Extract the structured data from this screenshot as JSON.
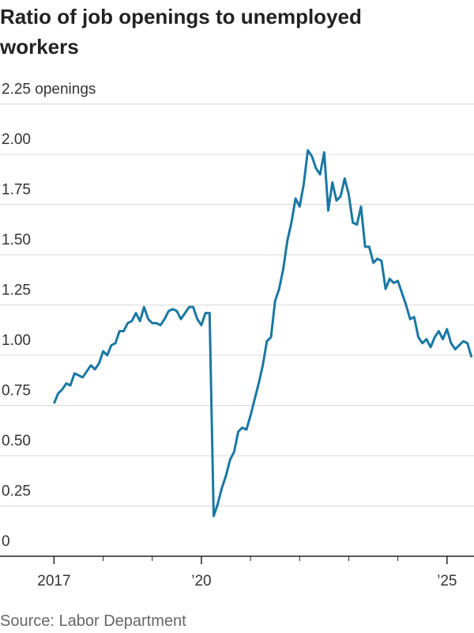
{
  "chart_data": {
    "type": "line",
    "title": "Ratio of job openings to unemployed workers",
    "source": "Source: Labor Department",
    "x": [
      2017,
      2017.083,
      2017.167,
      2017.25,
      2017.333,
      2017.417,
      2017.5,
      2017.583,
      2017.667,
      2017.75,
      2017.833,
      2017.917,
      2018,
      2018.083,
      2018.167,
      2018.25,
      2018.333,
      2018.417,
      2018.5,
      2018.583,
      2018.667,
      2018.75,
      2018.833,
      2018.917,
      2019,
      2019.083,
      2019.167,
      2019.25,
      2019.333,
      2019.417,
      2019.5,
      2019.583,
      2019.667,
      2019.75,
      2019.833,
      2019.917,
      2020,
      2020.083,
      2020.167,
      2020.25,
      2020.333,
      2020.417,
      2020.5,
      2020.583,
      2020.667,
      2020.75,
      2020.833,
      2020.917,
      2021,
      2021.083,
      2021.167,
      2021.25,
      2021.333,
      2021.417,
      2021.5,
      2021.583,
      2021.667,
      2021.75,
      2021.833,
      2021.917,
      2022,
      2022.083,
      2022.167,
      2022.25,
      2022.333,
      2022.417,
      2022.5,
      2022.583,
      2022.667,
      2022.75,
      2022.833,
      2022.917,
      2023,
      2023.083,
      2023.167,
      2023.25,
      2023.333,
      2023.417,
      2023.5,
      2023.583,
      2023.667,
      2023.75,
      2023.833,
      2023.917,
      2024,
      2024.083,
      2024.167,
      2024.25,
      2024.333,
      2024.417,
      2024.5,
      2024.583,
      2024.667,
      2024.75,
      2024.833,
      2024.917,
      2025,
      2025.083,
      2025.167,
      2025.25,
      2025.333,
      2025.417,
      2025.5
    ],
    "series": [
      {
        "name": "Ratio",
        "color": "#1a78a3",
        "values": [
          0.76,
          0.81,
          0.83,
          0.86,
          0.85,
          0.91,
          0.9,
          0.89,
          0.92,
          0.95,
          0.93,
          0.96,
          1.02,
          1.0,
          1.05,
          1.06,
          1.12,
          1.12,
          1.16,
          1.17,
          1.21,
          1.17,
          1.24,
          1.18,
          1.16,
          1.16,
          1.15,
          1.18,
          1.22,
          1.23,
          1.22,
          1.18,
          1.21,
          1.24,
          1.24,
          1.18,
          1.15,
          1.21,
          1.21,
          0.2,
          0.26,
          0.34,
          0.4,
          0.48,
          0.52,
          0.62,
          0.64,
          0.63,
          0.7,
          0.78,
          0.86,
          0.95,
          1.07,
          1.09,
          1.27,
          1.33,
          1.43,
          1.57,
          1.66,
          1.78,
          1.74,
          1.85,
          2.02,
          1.99,
          1.93,
          1.9,
          2.01,
          1.72,
          1.86,
          1.77,
          1.79,
          1.88,
          1.8,
          1.66,
          1.65,
          1.74,
          1.54,
          1.54,
          1.46,
          1.48,
          1.47,
          1.33,
          1.38,
          1.36,
          1.37,
          1.31,
          1.25,
          1.18,
          1.19,
          1.09,
          1.06,
          1.08,
          1.04,
          1.09,
          1.12,
          1.08,
          1.13,
          1.06,
          1.03,
          1.05,
          1.07,
          1.06,
          0.99
        ]
      }
    ],
    "xlim": [
      2015.9,
      2025.55
    ],
    "xticks": [
      {
        "value": 2017,
        "label": "2017"
      },
      {
        "value": 2020,
        "label": "’20"
      },
      {
        "value": 2025,
        "label": "’25"
      }
    ],
    "xminorticks": [
      2018,
      2019,
      2021,
      2022,
      2023,
      2024
    ],
    "ylim": [
      0,
      2.25
    ],
    "yticks": [
      0,
      {
        "value": 0.25,
        "label": "0.25"
      },
      {
        "value": 0.5,
        "label": "0.50"
      },
      {
        "value": 0.75,
        "label": "0.75"
      },
      {
        "value": 1,
        "label": "1.00"
      },
      {
        "value": 1.25,
        "label": "1.25"
      },
      {
        "value": 1.5,
        "label": "1.50"
      },
      {
        "value": 1.75,
        "label": "1.75"
      },
      {
        "value": 2,
        "label": "2.00"
      },
      {
        "value": 2.25,
        "label": "2.25 openings"
      }
    ],
    "grid": true
  }
}
